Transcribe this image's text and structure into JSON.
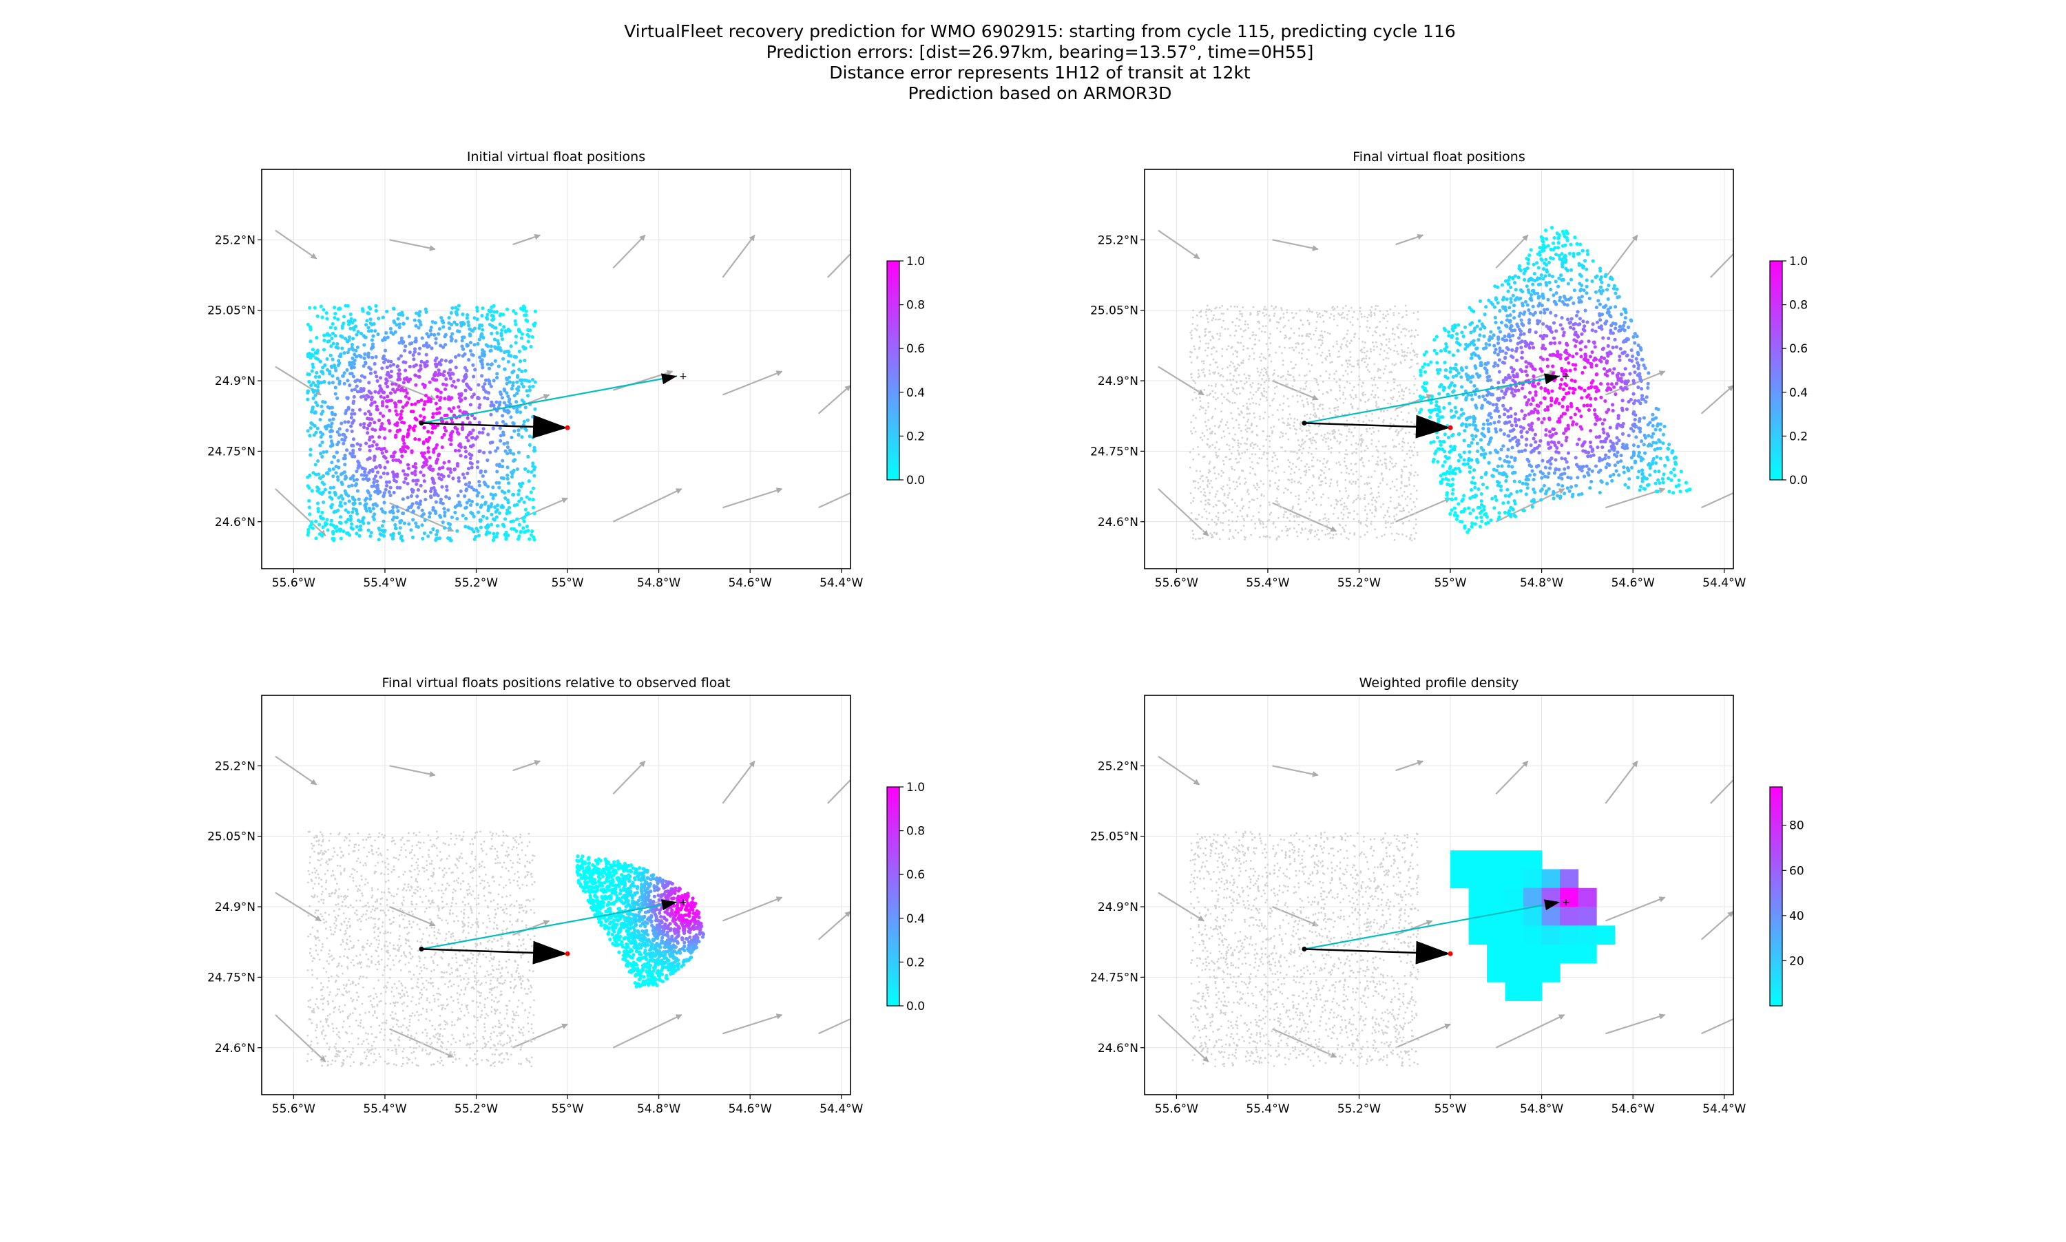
{
  "figure": {
    "title_lines": [
      "VirtualFleet recovery prediction for WMO 6902915:     starting from cycle 115, predicting cycle 116",
      "Prediction errors: [dist=26.97km, bearing=13.57°, time=0H55]",
      "Distance error represents 1H12 of transit at 12kt",
      "Prediction based on ARMOR3D"
    ]
  },
  "chart_data": [
    {
      "type": "scatter",
      "title": "Initial virtual float positions",
      "xlim": [
        -55.67,
        -54.38
      ],
      "ylim": [
        24.5,
        25.35
      ],
      "x_ticks": [
        -55.6,
        -55.4,
        -55.2,
        -55.0,
        -54.8,
        -54.6,
        -54.4
      ],
      "x_tick_labels": [
        "55.6°W",
        "55.4°W",
        "55.2°W",
        "55°W",
        "54.8°W",
        "54.6°W",
        "54.4°W"
      ],
      "y_ticks": [
        24.6,
        24.75,
        24.9,
        25.05,
        25.2
      ],
      "y_tick_labels": [
        "24.6°N",
        "24.75°N",
        "24.9°N",
        "25.05°N",
        "25.2°N"
      ],
      "grid": true,
      "cloud": {
        "kind": "square",
        "lon_range": [
          -55.57,
          -55.07
        ],
        "lat_range": [
          24.56,
          25.06
        ],
        "center": [
          -55.32,
          24.81
        ],
        "color_scale": "cyan-magenta"
      },
      "colorbar": {
        "range": [
          0.0,
          1.0
        ],
        "tick_labels": [
          "0.0",
          "0.2",
          "0.4",
          "0.6",
          "0.8",
          "1.0"
        ],
        "colors": [
          "#00ffff",
          "#ff00ff"
        ]
      }
    },
    {
      "type": "scatter",
      "title": "Final virtual float positions",
      "xlim": [
        -55.67,
        -54.38
      ],
      "ylim": [
        24.5,
        25.35
      ],
      "x_ticks": [
        -55.6,
        -55.4,
        -55.2,
        -55.0,
        -54.8,
        -54.6,
        -54.4
      ],
      "x_tick_labels": [
        "55.6°W",
        "55.4°W",
        "55.2°W",
        "55°W",
        "54.8°W",
        "54.6°W",
        "54.4°W"
      ],
      "y_ticks": [
        24.6,
        24.75,
        24.9,
        25.05,
        25.2
      ],
      "y_tick_labels": [
        "24.6°N",
        "24.75°N",
        "24.9°N",
        "25.05°N",
        "25.2°N"
      ],
      "grid": true,
      "background_cloud": true,
      "cloud": {
        "kind": "polygon",
        "polygon": [
          [
            -54.77,
            25.25
          ],
          [
            -54.65,
            25.13
          ],
          [
            -54.58,
            24.98
          ],
          [
            -54.55,
            24.87
          ],
          [
            -54.52,
            24.77
          ],
          [
            -54.47,
            24.66
          ],
          [
            -54.52,
            24.66
          ],
          [
            -54.62,
            24.67
          ],
          [
            -54.79,
            24.64
          ],
          [
            -54.95,
            24.57
          ],
          [
            -55.0,
            24.6
          ],
          [
            -55.05,
            24.77
          ],
          [
            -55.08,
            24.88
          ],
          [
            -55.05,
            24.98
          ],
          [
            -54.95,
            25.07
          ],
          [
            -54.86,
            25.13
          ]
        ],
        "center": [
          -54.74,
          24.88
        ],
        "color_scale": "cyan-magenta"
      },
      "colorbar": {
        "range": [
          0.0,
          1.0
        ],
        "tick_labels": [
          "0.0",
          "0.2",
          "0.4",
          "0.6",
          "0.8",
          "1.0"
        ],
        "colors": [
          "#00ffff",
          "#ff00ff"
        ]
      }
    },
    {
      "type": "scatter",
      "title": "Final virtual floats positions relative to observed float",
      "xlim": [
        -55.67,
        -54.38
      ],
      "ylim": [
        24.5,
        25.35
      ],
      "x_ticks": [
        -55.6,
        -55.4,
        -55.2,
        -55.0,
        -54.8,
        -54.6,
        -54.4
      ],
      "x_tick_labels": [
        "55.6°W",
        "55.4°W",
        "55.2°W",
        "55°W",
        "54.8°W",
        "54.6°W",
        "54.4°W"
      ],
      "y_ticks": [
        24.6,
        24.75,
        24.9,
        25.05,
        25.2
      ],
      "y_tick_labels": [
        "24.6°N",
        "24.75°N",
        "24.9°N",
        "25.05°N",
        "25.2°N"
      ],
      "grid": true,
      "background_cloud": true,
      "cloud": {
        "kind": "polygon",
        "polygon": [
          [
            -54.98,
            25.01
          ],
          [
            -54.9,
            25.0
          ],
          [
            -54.83,
            24.98
          ],
          [
            -54.77,
            24.95
          ],
          [
            -54.72,
            24.92
          ],
          [
            -54.7,
            24.84
          ],
          [
            -54.73,
            24.79
          ],
          [
            -54.8,
            24.73
          ],
          [
            -54.85,
            24.73
          ],
          [
            -54.88,
            24.79
          ],
          [
            -54.94,
            24.88
          ],
          [
            -54.98,
            24.96
          ]
        ],
        "center": [
          -54.74,
          24.9
        ],
        "color_scale": "cyan-magenta"
      },
      "colorbar": {
        "range": [
          0.0,
          1.0
        ],
        "tick_labels": [
          "0.0",
          "0.2",
          "0.4",
          "0.6",
          "0.8",
          "1.0"
        ],
        "colors": [
          "#00ffff",
          "#ff00ff"
        ]
      }
    },
    {
      "type": "heatmap",
      "title": "Weighted profile density",
      "xlim": [
        -55.67,
        -54.38
      ],
      "ylim": [
        24.5,
        25.35
      ],
      "x_ticks": [
        -55.6,
        -55.4,
        -55.2,
        -55.0,
        -54.8,
        -54.6,
        -54.4
      ],
      "x_tick_labels": [
        "55.6°W",
        "55.4°W",
        "55.2°W",
        "55°W",
        "54.8°W",
        "54.6°W",
        "54.4°W"
      ],
      "y_ticks": [
        24.6,
        24.75,
        24.9,
        25.05,
        25.2
      ],
      "y_tick_labels": [
        "24.6°N",
        "24.75°N",
        "24.9°N",
        "25.05°N",
        "25.2°N"
      ],
      "grid": true,
      "background_cloud": true,
      "cell_size": [
        0.04,
        0.04
      ],
      "cells": [
        [
          -55.0,
          24.98,
          2
        ],
        [
          -54.96,
          24.98,
          2
        ],
        [
          -54.92,
          24.98,
          2
        ],
        [
          -54.88,
          24.98,
          2
        ],
        [
          -54.84,
          24.98,
          2
        ],
        [
          -55.0,
          24.94,
          2
        ],
        [
          -54.96,
          24.94,
          2
        ],
        [
          -54.92,
          24.94,
          2
        ],
        [
          -54.88,
          24.94,
          2
        ],
        [
          -54.84,
          24.94,
          5
        ],
        [
          -54.8,
          24.94,
          20
        ],
        [
          -54.76,
          24.94,
          55
        ],
        [
          -54.96,
          24.9,
          2
        ],
        [
          -54.92,
          24.9,
          2
        ],
        [
          -54.88,
          24.9,
          3
        ],
        [
          -54.84,
          24.9,
          30
        ],
        [
          -54.8,
          24.9,
          62
        ],
        [
          -54.76,
          24.9,
          95
        ],
        [
          -54.72,
          24.9,
          72
        ],
        [
          -54.96,
          24.86,
          2
        ],
        [
          -54.92,
          24.86,
          2
        ],
        [
          -54.88,
          24.86,
          2
        ],
        [
          -54.84,
          24.86,
          10
        ],
        [
          -54.8,
          24.86,
          40
        ],
        [
          -54.76,
          24.86,
          60
        ],
        [
          -54.72,
          24.86,
          58
        ],
        [
          -54.96,
          24.82,
          2
        ],
        [
          -54.92,
          24.82,
          2
        ],
        [
          -54.88,
          24.82,
          2
        ],
        [
          -54.84,
          24.82,
          3
        ],
        [
          -54.8,
          24.82,
          8
        ],
        [
          -54.76,
          24.82,
          5
        ],
        [
          -54.72,
          24.82,
          4
        ],
        [
          -54.68,
          24.82,
          2
        ],
        [
          -54.92,
          24.78,
          2
        ],
        [
          -54.88,
          24.78,
          2
        ],
        [
          -54.84,
          24.78,
          2
        ],
        [
          -54.8,
          24.78,
          2
        ],
        [
          -54.76,
          24.78,
          2
        ],
        [
          -54.72,
          24.78,
          2
        ],
        [
          -54.92,
          24.74,
          2
        ],
        [
          -54.88,
          24.74,
          2
        ],
        [
          -54.84,
          24.74,
          2
        ],
        [
          -54.8,
          24.74,
          2
        ],
        [
          -54.88,
          24.7,
          2
        ],
        [
          -54.84,
          24.7,
          2
        ]
      ],
      "colorbar": {
        "range": [
          0,
          97
        ],
        "ticks": [
          20,
          40,
          60,
          80
        ],
        "tick_labels": [
          "20",
          "40",
          "60",
          "80"
        ],
        "colors": [
          "#00ffff",
          "#ff00ff"
        ]
      }
    }
  ],
  "markers": {
    "start_position": [
      -55.32,
      24.81
    ],
    "observed_position": [
      -55.0,
      24.8
    ],
    "predicted_position": [
      -54.76,
      24.91
    ],
    "start_color": "#000000",
    "observed_color": "#ff0000",
    "prediction_line_color": "#00bfbf",
    "arrow_color": "#000000"
  },
  "currents": [
    [
      -55.64,
      25.22,
      0.09,
      -0.06
    ],
    [
      -55.39,
      25.2,
      0.1,
      -0.02
    ],
    [
      -55.12,
      25.19,
      0.06,
      0.02
    ],
    [
      -54.9,
      25.14,
      0.07,
      0.07
    ],
    [
      -54.66,
      25.12,
      0.07,
      0.09
    ],
    [
      -54.43,
      25.12,
      0.06,
      0.06
    ],
    [
      -55.64,
      24.93,
      0.1,
      -0.06
    ],
    [
      -55.39,
      24.9,
      0.1,
      -0.04
    ],
    [
      -55.12,
      24.84,
      0.08,
      0.03
    ],
    [
      -54.9,
      24.88,
      0.13,
      0.04
    ],
    [
      -54.66,
      24.87,
      0.13,
      0.05
    ],
    [
      -54.45,
      24.83,
      0.07,
      0.06
    ],
    [
      -55.64,
      24.67,
      0.11,
      -0.1
    ],
    [
      -55.39,
      24.64,
      0.14,
      -0.06
    ],
    [
      -55.12,
      24.6,
      0.12,
      0.05
    ],
    [
      -54.9,
      24.6,
      0.15,
      0.07
    ],
    [
      -54.66,
      24.63,
      0.13,
      0.04
    ],
    [
      -54.45,
      24.63,
      0.09,
      0.04
    ]
  ]
}
